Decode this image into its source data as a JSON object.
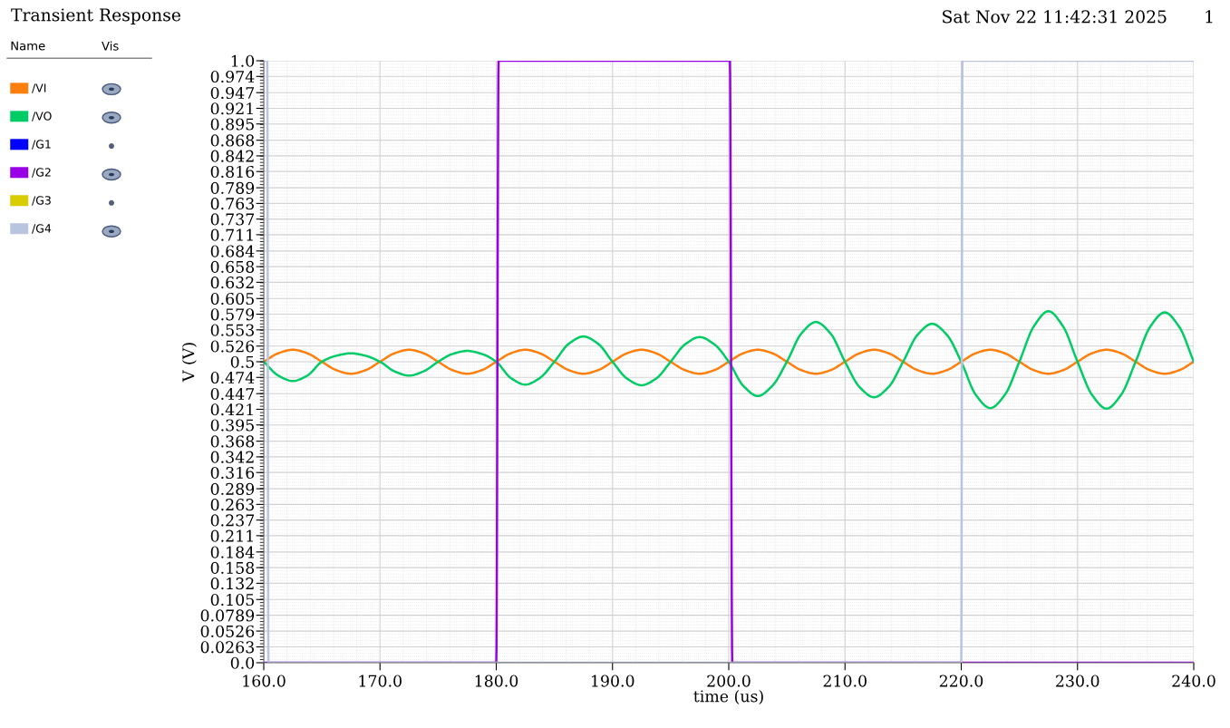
{
  "chart_data": {
    "type": "line",
    "title": "Transient Response",
    "xlabel": "time (us)",
    "ylabel": "V (V)",
    "legend_title": "Name",
    "annotations": [
      "Vis",
      "Sat Nov 22 11:42:31 2025",
      "1"
    ],
    "x": [
      160,
      161.25,
      162.5,
      163.75,
      165,
      166.25,
      167.5,
      168.75,
      170,
      171.25,
      172.5,
      173.75,
      175,
      176.25,
      177.5,
      178.75,
      180,
      181.25,
      182.5,
      183.75,
      185,
      186.25,
      187.5,
      188.75,
      190,
      191.25,
      192.5,
      193.75,
      195,
      196.25,
      197.5,
      198.75,
      200,
      201.25,
      202.5,
      203.75,
      205,
      206.25,
      207.5,
      208.75,
      210,
      211.25,
      212.5,
      213.75,
      215,
      216.25,
      217.5,
      218.75,
      220,
      221.25,
      222.5,
      223.75,
      225,
      226.25,
      227.5,
      228.75,
      230,
      231.25,
      232.5,
      233.75,
      235,
      236.25,
      237.5,
      238.75,
      240
    ],
    "series": [
      {
        "name": "/VI",
        "color": "#ff7f0e",
        "values": [
          0.5,
          0.514,
          0.52,
          0.514,
          0.5,
          0.486,
          0.48,
          0.486,
          0.5,
          0.514,
          0.52,
          0.514,
          0.5,
          0.486,
          0.48,
          0.486,
          0.5,
          0.514,
          0.52,
          0.514,
          0.5,
          0.486,
          0.48,
          0.486,
          0.5,
          0.514,
          0.52,
          0.514,
          0.5,
          0.486,
          0.48,
          0.486,
          0.5,
          0.514,
          0.52,
          0.514,
          0.5,
          0.486,
          0.48,
          0.486,
          0.5,
          0.514,
          0.52,
          0.514,
          0.5,
          0.486,
          0.48,
          0.486,
          0.5,
          0.514,
          0.52,
          0.514,
          0.5,
          0.486,
          0.48,
          0.486,
          0.5,
          0.514,
          0.52,
          0.514,
          0.5,
          0.486,
          0.48,
          0.486,
          0.5
        ]
      },
      {
        "name": "/VO",
        "color": "#00cc66",
        "values": [
          0.5,
          0.477,
          0.468,
          0.477,
          0.5,
          0.51,
          0.514,
          0.51,
          0.5,
          0.484,
          0.477,
          0.484,
          0.5,
          0.513,
          0.518,
          0.513,
          0.5,
          0.473,
          0.462,
          0.473,
          0.5,
          0.53,
          0.542,
          0.53,
          0.5,
          0.472,
          0.461,
          0.472,
          0.5,
          0.529,
          0.541,
          0.529,
          0.5,
          0.46,
          0.443,
          0.46,
          0.5,
          0.547,
          0.566,
          0.547,
          0.5,
          0.458,
          0.441,
          0.458,
          0.5,
          0.545,
          0.563,
          0.545,
          0.5,
          0.445,
          0.423,
          0.445,
          0.5,
          0.559,
          0.584,
          0.559,
          0.5,
          0.445,
          0.422,
          0.445,
          0.5,
          0.558,
          0.582,
          0.558,
          0.5
        ]
      },
      {
        "name": "/G1",
        "color": "#0000ff",
        "values": [
          null,
          null,
          null,
          null,
          null,
          null,
          null,
          null,
          null,
          null,
          null,
          null,
          null,
          null,
          null,
          null,
          null,
          null,
          null,
          null,
          null,
          null,
          null,
          null,
          null,
          null,
          null,
          null,
          null,
          null,
          null,
          null,
          null,
          null,
          null,
          null,
          null,
          null,
          null,
          null,
          null,
          null,
          null,
          null,
          null,
          null,
          null,
          null,
          null,
          null,
          null,
          null,
          null,
          null,
          null,
          null,
          null,
          null,
          null,
          null,
          null,
          null,
          null,
          null,
          null
        ]
      },
      {
        "name": "/G2",
        "color": "#9900e6",
        "x": [
          160,
          180,
          180.2,
          200.1,
          200.3,
          240
        ],
        "values": [
          0,
          0,
          1,
          1,
          0,
          0
        ]
      },
      {
        "name": "/G3",
        "color": "#d9cc00",
        "values": [
          null,
          null,
          null,
          null,
          null,
          null,
          null,
          null,
          null,
          null,
          null,
          null,
          null,
          null,
          null,
          null,
          null,
          null,
          null,
          null,
          null,
          null,
          null,
          null,
          null,
          null,
          null,
          null,
          null,
          null,
          null,
          null,
          null,
          null,
          null,
          null,
          null,
          null,
          null,
          null,
          null,
          null,
          null,
          null,
          null,
          null,
          null,
          null,
          null,
          null,
          null,
          null,
          null,
          null,
          null,
          null,
          null,
          null,
          null,
          null,
          null,
          null,
          null,
          null,
          null
        ]
      },
      {
        "name": "/G4",
        "color": "#b8c4e0",
        "x": [
          160,
          160.3,
          160.4,
          220,
          220.1,
          240
        ],
        "values": [
          1,
          1,
          0,
          0,
          1,
          1
        ]
      }
    ],
    "xlim": [
      160,
      240
    ],
    "ylim": [
      0,
      1
    ],
    "xticks": [
      {
        "value": 160,
        "label": "160.0"
      },
      {
        "value": 170,
        "label": "170.0"
      },
      {
        "value": 180,
        "label": "180.0"
      },
      {
        "value": 190,
        "label": "190.0"
      },
      {
        "value": 200,
        "label": "200.0"
      },
      {
        "value": 210,
        "label": "210.0"
      },
      {
        "value": 220,
        "label": "220.0"
      },
      {
        "value": 230,
        "label": "230.0"
      },
      {
        "value": 240,
        "label": "240.0"
      }
    ],
    "yticks": [
      {
        "value": 0,
        "label": "0.0"
      },
      0.0263,
      0.0526,
      0.0789,
      0.105,
      0.132,
      0.158,
      0.184,
      0.211,
      0.237,
      0.263,
      0.289,
      0.316,
      0.342,
      0.368,
      0.395,
      0.421,
      0.447,
      0.474,
      0.5,
      0.526,
      0.553,
      0.579,
      0.605,
      0.632,
      0.658,
      0.684,
      0.711,
      0.737,
      0.763,
      0.789,
      0.816,
      0.842,
      0.868,
      0.895,
      0.921,
      0.947,
      0.974,
      {
        "value": 1,
        "label": "1.0"
      }
    ],
    "grid": true,
    "legend": "left",
    "line_style": "solid",
    "marker": "none"
  }
}
